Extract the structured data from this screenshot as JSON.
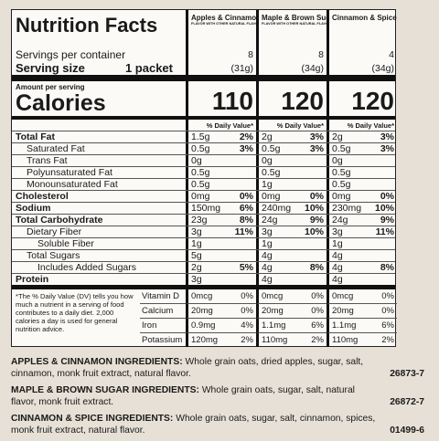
{
  "header": {
    "title": "Nutrition Facts",
    "products": [
      {
        "name": "Apples & Cinnamon",
        "note": "FLAVOR WITH OTHER NATURAL FLAVORS"
      },
      {
        "name": "Maple & Brown Sugar",
        "note": "FLAVOR WITH OTHER NATURAL FLAVORS"
      },
      {
        "name": "Cinnamon & Spice"
      }
    ]
  },
  "servings": {
    "label": "Servings per container",
    "values": [
      8,
      8,
      4
    ],
    "size_label": "Serving size",
    "size": "1 packet",
    "size_values": [
      "(31g)",
      "(34g)",
      "(34g)"
    ]
  },
  "calories": {
    "caption": "Amount per serving",
    "label": "Calories",
    "values": [
      110,
      120,
      120
    ]
  },
  "dv_header": [
    "% Daily Value*",
    "% Daily Value*",
    "% Daily Value*"
  ],
  "nutrients": [
    {
      "label": "Total Fat",
      "bold": true,
      "indent": 0,
      "values": [
        {
          "amount": "1.5g",
          "dv": "2%"
        },
        {
          "amount": "2g",
          "dv": "3%"
        },
        {
          "amount": "2g",
          "dv": "3%"
        }
      ]
    },
    {
      "label": "Saturated Fat",
      "indent": 1,
      "values": [
        {
          "amount": "0.5g",
          "dv": "3%"
        },
        {
          "amount": "0.5g",
          "dv": "3%"
        },
        {
          "amount": "0.5g",
          "dv": "3%"
        }
      ]
    },
    {
      "label": "Trans Fat",
      "indent": 1,
      "values": [
        {
          "amount": "0g"
        },
        {
          "amount": "0g"
        },
        {
          "amount": "0g"
        }
      ]
    },
    {
      "label": "Polyunsaturated Fat",
      "indent": 1,
      "values": [
        {
          "amount": "0.5g"
        },
        {
          "amount": "0.5g"
        },
        {
          "amount": "0.5g"
        }
      ]
    },
    {
      "label": "Monounsaturated Fat",
      "indent": 1,
      "values": [
        {
          "amount": "0.5g"
        },
        {
          "amount": "1g"
        },
        {
          "amount": "0.5g"
        }
      ]
    },
    {
      "label": "Cholesterol",
      "bold": true,
      "indent": 0,
      "values": [
        {
          "amount": "0mg",
          "dv": "0%"
        },
        {
          "amount": "0mg",
          "dv": "0%"
        },
        {
          "amount": "0mg",
          "dv": "0%"
        }
      ]
    },
    {
      "label": "Sodium",
      "bold": true,
      "indent": 0,
      "values": [
        {
          "amount": "150mg",
          "dv": "6%"
        },
        {
          "amount": "240mg",
          "dv": "10%"
        },
        {
          "amount": "230mg",
          "dv": "10%"
        }
      ]
    },
    {
      "label": "Total Carbohydrate",
      "bold": true,
      "indent": 0,
      "values": [
        {
          "amount": "23g",
          "dv": "8%"
        },
        {
          "amount": "24g",
          "dv": "9%"
        },
        {
          "amount": "24g",
          "dv": "9%"
        }
      ]
    },
    {
      "label": "Dietary Fiber",
      "indent": 1,
      "values": [
        {
          "amount": "3g",
          "dv": "11%"
        },
        {
          "amount": "3g",
          "dv": "10%"
        },
        {
          "amount": "3g",
          "dv": "11%"
        }
      ]
    },
    {
      "label": "Soluble Fiber",
      "indent": 2,
      "values": [
        {
          "amount": "1g"
        },
        {
          "amount": "1g"
        },
        {
          "amount": "1g"
        }
      ]
    },
    {
      "label": "Total Sugars",
      "indent": 1,
      "values": [
        {
          "amount": "5g"
        },
        {
          "amount": "4g"
        },
        {
          "amount": "4g"
        }
      ]
    },
    {
      "label": "Includes Added Sugars",
      "indent": 2,
      "values": [
        {
          "amount": "2g",
          "dv": "5%"
        },
        {
          "amount": "4g",
          "dv": "8%"
        },
        {
          "amount": "4g",
          "dv": "8%"
        }
      ]
    },
    {
      "label": "Protein",
      "bold": true,
      "indent": 0,
      "values": [
        {
          "amount": "3g"
        },
        {
          "amount": "4g"
        },
        {
          "amount": "4g"
        }
      ]
    }
  ],
  "footnote": "*The % Daily Value (DV) tells you how much a nutrient in a serving of food contributes to a daily diet. 2,000 calories a day is used for general nutrition advice.",
  "vitamins": [
    {
      "label": "Vitamin D",
      "values": [
        {
          "amount": "0mcg",
          "dv": "0%"
        },
        {
          "amount": "0mcg",
          "dv": "0%"
        },
        {
          "amount": "0mcg",
          "dv": "0%"
        }
      ]
    },
    {
      "label": "Calcium",
      "values": [
        {
          "amount": "20mg",
          "dv": "0%"
        },
        {
          "amount": "20mg",
          "dv": "0%"
        },
        {
          "amount": "20mg",
          "dv": "0%"
        }
      ]
    },
    {
      "label": "Iron",
      "values": [
        {
          "amount": "0.9mg",
          "dv": "4%"
        },
        {
          "amount": "1.1mg",
          "dv": "6%"
        },
        {
          "amount": "1.1mg",
          "dv": "6%"
        }
      ]
    },
    {
      "label": "Potassium",
      "values": [
        {
          "amount": "120mg",
          "dv": "2%"
        },
        {
          "amount": "110mg",
          "dv": "2%"
        },
        {
          "amount": "110mg",
          "dv": "2%"
        }
      ]
    }
  ],
  "ingredients": [
    {
      "title": "APPLES & CINNAMON INGREDIENTS:",
      "text": "Whole grain oats, dried apples, sugar, salt, cinnamon, monk fruit extract, natural flavor.",
      "code": "26873-7"
    },
    {
      "title": "MAPLE & BROWN SUGAR INGREDIENTS:",
      "text": "Whole grain oats, sugar, salt, natural flavor, monk fruit extract.",
      "code": "26872-7"
    },
    {
      "title": "CINNAMON & SPICE INGREDIENTS:",
      "text": "Whole grain oats, sugar, salt, cinnamon, spices, monk fruit extract, natural flavor.",
      "code": "01499-6"
    }
  ]
}
